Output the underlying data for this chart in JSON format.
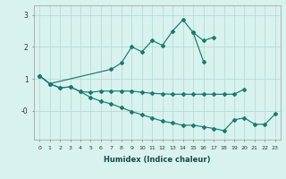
{
  "xlabel": "Humidex (Indice chaleur)",
  "background_color": "#d8f2ee",
  "grid_color": "#b0d8d2",
  "line_color": "#1a7a6e",
  "x_values": [
    0,
    1,
    2,
    3,
    4,
    5,
    6,
    7,
    8,
    9,
    10,
    11,
    12,
    13,
    14,
    15,
    16,
    17,
    18,
    19,
    20,
    21,
    22,
    23
  ],
  "series1": [
    1.1,
    0.85,
    null,
    null,
    null,
    null,
    null,
    1.3,
    1.5,
    2.0,
    1.85,
    2.2,
    2.05,
    2.5,
    2.85,
    2.45,
    1.55,
    null,
    null,
    null,
    null,
    null,
    null,
    null
  ],
  "series2": [
    null,
    null,
    null,
    null,
    null,
    null,
    null,
    null,
    null,
    null,
    null,
    null,
    null,
    null,
    null,
    2.45,
    2.2,
    2.3,
    null,
    null,
    null,
    null,
    null,
    null
  ],
  "series3": [
    1.1,
    0.85,
    0.72,
    0.75,
    0.6,
    0.58,
    0.62,
    0.62,
    0.62,
    0.62,
    0.58,
    0.55,
    0.53,
    0.52,
    0.52,
    0.52,
    0.52,
    0.52,
    0.52,
    0.52,
    0.68,
    null,
    null,
    null
  ],
  "series4": [
    1.1,
    0.85,
    0.72,
    0.75,
    0.6,
    0.42,
    0.3,
    0.22,
    0.1,
    -0.02,
    -0.12,
    -0.22,
    -0.32,
    -0.38,
    -0.45,
    -0.45,
    -0.5,
    -0.55,
    -0.62,
    -0.28,
    -0.22,
    -0.42,
    -0.42,
    -0.1
  ],
  "ylim": [
    -0.9,
    3.3
  ],
  "ytick_vals": [
    0,
    1,
    2,
    3
  ],
  "ytick_labels": [
    "-0",
    "1",
    "2",
    "3"
  ]
}
